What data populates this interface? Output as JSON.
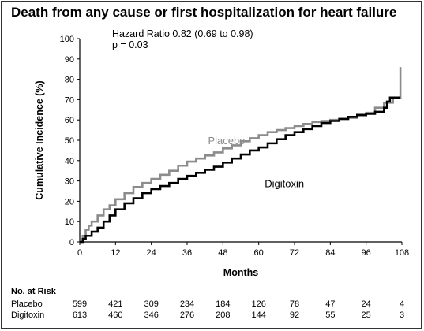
{
  "title": "Death from any cause or first hospitalization for heart failure",
  "hazard_text": "Hazard Ratio 0.82 (0.69  to  0.98)",
  "p_text": "p = 0.03",
  "colors": {
    "placebo": "#8c8c8c",
    "digitoxin": "#000000",
    "axis": "#000000"
  },
  "chart_data": {
    "type": "line",
    "step": true,
    "xlabel": "Months",
    "ylabel": "Cumulative Incidence (%)",
    "xlim": [
      0,
      108
    ],
    "ylim": [
      0,
      100
    ],
    "x_ticks": [
      0,
      12,
      24,
      36,
      48,
      60,
      72,
      84,
      96,
      108
    ],
    "y_ticks": [
      0,
      10,
      20,
      30,
      40,
      50,
      60,
      70,
      80,
      90,
      100
    ],
    "grid": false,
    "series": [
      {
        "name": "Placebo",
        "x": [
          0,
          1,
          2,
          3,
          4,
          6,
          8,
          10,
          12,
          15,
          18,
          21,
          24,
          27,
          30,
          33,
          36,
          39,
          42,
          45,
          48,
          51,
          54,
          57,
          60,
          63,
          66,
          69,
          72,
          75,
          78,
          81,
          84,
          87,
          90,
          93,
          96,
          99,
          102,
          105,
          106,
          107.5,
          107.5
        ],
        "y": [
          0,
          3,
          6,
          8,
          10,
          13,
          16,
          18,
          21,
          24,
          27,
          29,
          31,
          33,
          35,
          37.5,
          39.5,
          41,
          42.5,
          44,
          46,
          47.5,
          49.5,
          51,
          52.5,
          54,
          55,
          56,
          57,
          58,
          59,
          59.5,
          60,
          60.5,
          61,
          62,
          63.5,
          66,
          68.5,
          71,
          71,
          71,
          86
        ]
      },
      {
        "name": "Digitoxin",
        "x": [
          0,
          1,
          2,
          4,
          6,
          8,
          10,
          12,
          15,
          18,
          21,
          24,
          27,
          30,
          33,
          36,
          39,
          42,
          45,
          48,
          51,
          54,
          57,
          60,
          63,
          66,
          69,
          72,
          75,
          78,
          81,
          84,
          87,
          90,
          93,
          96,
          99,
          102,
          103,
          104,
          107.5
        ],
        "y": [
          0,
          1.5,
          3,
          5,
          7,
          10,
          13,
          16,
          19,
          21.5,
          24,
          26,
          27.5,
          29,
          31,
          32.5,
          34,
          35.5,
          37,
          39,
          41,
          43,
          45,
          46.5,
          48.5,
          50.5,
          52.5,
          54,
          55.5,
          57,
          58.5,
          59.5,
          60.5,
          61.5,
          62.5,
          63,
          64,
          66,
          69,
          71,
          71
        ]
      }
    ],
    "annotations": [
      {
        "text": "Placebo",
        "x": 43,
        "y": 48,
        "color": "placebo"
      },
      {
        "text": "Digitoxin",
        "x": 62,
        "y": 27,
        "color": "digitoxin"
      }
    ]
  },
  "risk_table": {
    "header": "No. at Risk",
    "times": [
      0,
      12,
      24,
      36,
      48,
      60,
      72,
      84,
      96,
      108
    ],
    "rows": [
      {
        "label": "Placebo",
        "values": [
          "599",
          "421",
          "309",
          "234",
          "184",
          "126",
          "78",
          "47",
          "24",
          "4"
        ]
      },
      {
        "label": "Digitoxin",
        "values": [
          "613",
          "460",
          "346",
          "276",
          "208",
          "144",
          "92",
          "55",
          "25",
          "3"
        ]
      }
    ]
  }
}
